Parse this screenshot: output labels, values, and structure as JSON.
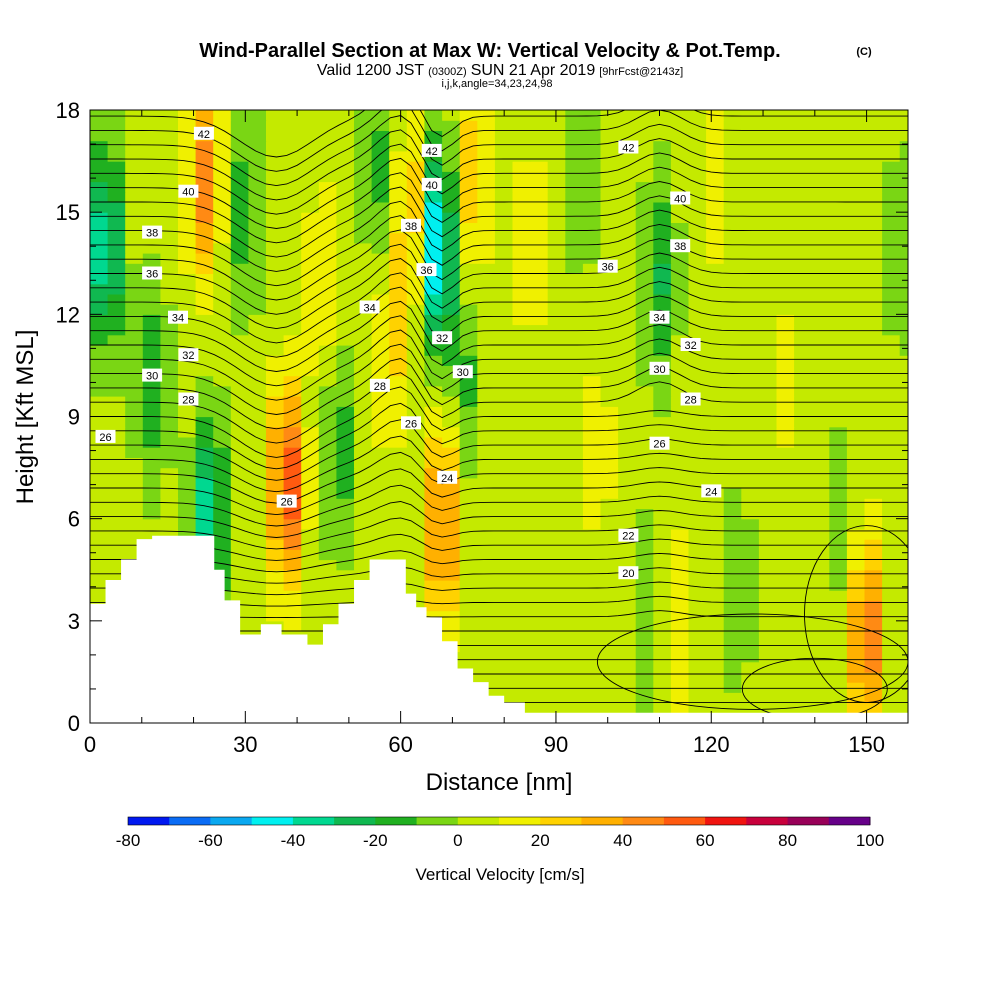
{
  "chart_data": {
    "type": "heatmap",
    "title": "Wind-Parallel Section at Max W: Vertical Velocity & Pot.Temp.",
    "title_mark": "(C)",
    "subtitle": {
      "valid_prefix": "Valid 1200 JST",
      "utc": "(0300Z)",
      "date": "SUN 21 Apr 2019",
      "forecast": "[9hrFcst@2143z]"
    },
    "indices": "i,j,k,angle=34,23,24,98",
    "xlabel": "Distance [nm]",
    "ylabel": "Height [Kft MSL]",
    "xlim": [
      0,
      158
    ],
    "ylim": [
      0,
      18
    ],
    "x_ticks": [
      "0",
      "30",
      "60",
      "90",
      "120",
      "150"
    ],
    "y_ticks": [
      "0",
      "3",
      "6",
      "9",
      "12",
      "15",
      "18"
    ],
    "colorbar": {
      "label": "Vertical Velocity [cm/s]",
      "tick_labels": [
        "-80",
        "-60",
        "-40",
        "-20",
        "0",
        "20",
        "40",
        "60",
        "80",
        "100"
      ],
      "colors": [
        "#0018f0",
        "#0a6cf5",
        "#0aa8f0",
        "#00f0f0",
        "#00d890",
        "#10b850",
        "#20b020",
        "#7ad614",
        "#c4ea00",
        "#f0f000",
        "#ffd200",
        "#ffb000",
        "#ff8a14",
        "#ff5a10",
        "#f01410",
        "#c8003c",
        "#980058",
        "#660088"
      ]
    },
    "terrain_kft": [
      [
        0,
        3.5
      ],
      [
        3,
        4.2
      ],
      [
        6,
        4.8
      ],
      [
        9,
        5.4
      ],
      [
        12,
        5.5
      ],
      [
        22,
        5.5
      ],
      [
        24,
        4.5
      ],
      [
        26,
        3.6
      ],
      [
        29,
        2.6
      ],
      [
        33,
        2.9
      ],
      [
        37,
        2.6
      ],
      [
        42,
        2.3
      ],
      [
        45,
        2.9
      ],
      [
        48,
        3.5
      ],
      [
        51,
        4.2
      ],
      [
        54,
        4.8
      ],
      [
        58,
        4.8
      ],
      [
        61,
        3.8
      ],
      [
        63,
        3.4
      ],
      [
        65,
        3.1
      ],
      [
        68,
        2.4
      ],
      [
        71,
        1.6
      ],
      [
        74,
        1.2
      ],
      [
        77,
        0.8
      ],
      [
        80,
        0.6
      ],
      [
        84,
        0.3
      ],
      [
        158,
        0.3
      ]
    ],
    "w_features": [
      {
        "x": 3,
        "y": 14,
        "w": -45
      },
      {
        "x": 12,
        "y": 10,
        "w": -22
      },
      {
        "x": 22,
        "y": 16,
        "w": 42
      },
      {
        "x": 23,
        "y": 6,
        "w": -42
      },
      {
        "x": 30,
        "y": 15,
        "w": -20
      },
      {
        "x": 38,
        "y": 7,
        "w": 58
      },
      {
        "x": 45,
        "y": 13,
        "w": 18
      },
      {
        "x": 48,
        "y": 8,
        "w": -20
      },
      {
        "x": 56,
        "y": 16,
        "w": -18
      },
      {
        "x": 58,
        "y": 11,
        "w": 20
      },
      {
        "x": 62,
        "y": 15,
        "w": 30
      },
      {
        "x": 67,
        "y": 14,
        "w": -60
      },
      {
        "x": 68,
        "y": 6,
        "w": 48
      },
      {
        "x": 72,
        "y": 10,
        "w": -18
      },
      {
        "x": 74,
        "y": 16,
        "w": 25
      },
      {
        "x": 85,
        "y": 14,
        "w": 15
      },
      {
        "x": 95,
        "y": 16,
        "w": -12
      },
      {
        "x": 98,
        "y": 8,
        "w": 12
      },
      {
        "x": 110,
        "y": 13,
        "w": -25
      },
      {
        "x": 109,
        "y": 3,
        "w": -22
      },
      {
        "x": 112,
        "y": 3,
        "w": 22
      },
      {
        "x": 120,
        "y": 16,
        "w": 12
      },
      {
        "x": 125,
        "y": 4,
        "w": -12
      },
      {
        "x": 135,
        "y": 10,
        "w": 10
      },
      {
        "x": 145,
        "y": 6,
        "w": -10
      },
      {
        "x": 150,
        "y": 2.5,
        "w": 48
      },
      {
        "x": 157,
        "y": 14,
        "w": -14
      }
    ],
    "theta_labels": [
      {
        "value": "42",
        "x": 22,
        "y": 17.3
      },
      {
        "value": "42",
        "x": 66,
        "y": 16.8
      },
      {
        "value": "42",
        "x": 104,
        "y": 16.9
      },
      {
        "value": "40",
        "x": 19,
        "y": 15.6
      },
      {
        "value": "40",
        "x": 66,
        "y": 15.8
      },
      {
        "value": "40",
        "x": 114,
        "y": 15.4
      },
      {
        "value": "38",
        "x": 12,
        "y": 14.4
      },
      {
        "value": "38",
        "x": 62,
        "y": 14.6
      },
      {
        "value": "38",
        "x": 114,
        "y": 14.0
      },
      {
        "value": "36",
        "x": 12,
        "y": 13.2
      },
      {
        "value": "36",
        "x": 65,
        "y": 13.3
      },
      {
        "value": "36",
        "x": 100,
        "y": 13.4
      },
      {
        "value": "34",
        "x": 17,
        "y": 11.9
      },
      {
        "value": "34",
        "x": 54,
        "y": 12.2
      },
      {
        "value": "34",
        "x": 110,
        "y": 11.9
      },
      {
        "value": "32",
        "x": 19,
        "y": 10.8
      },
      {
        "value": "32",
        "x": 68,
        "y": 11.3
      },
      {
        "value": "32",
        "x": 116,
        "y": 11.1
      },
      {
        "value": "30",
        "x": 12,
        "y": 10.2
      },
      {
        "value": "30",
        "x": 72,
        "y": 10.3
      },
      {
        "value": "30",
        "x": 110,
        "y": 10.4
      },
      {
        "value": "28",
        "x": 19,
        "y": 9.5
      },
      {
        "value": "28",
        "x": 56,
        "y": 9.9
      },
      {
        "value": "28",
        "x": 116,
        "y": 9.5
      },
      {
        "value": "26",
        "x": 3,
        "y": 8.4
      },
      {
        "value": "26",
        "x": 62,
        "y": 8.8
      },
      {
        "value": "26",
        "x": 110,
        "y": 8.2
      },
      {
        "value": "26",
        "x": 38,
        "y": 6.5
      },
      {
        "value": "24",
        "x": 69,
        "y": 7.2
      },
      {
        "value": "24",
        "x": 120,
        "y": 6.8
      },
      {
        "value": "22",
        "x": 104,
        "y": 5.5
      },
      {
        "value": "20",
        "x": 104,
        "y": 4.4
      }
    ]
  }
}
